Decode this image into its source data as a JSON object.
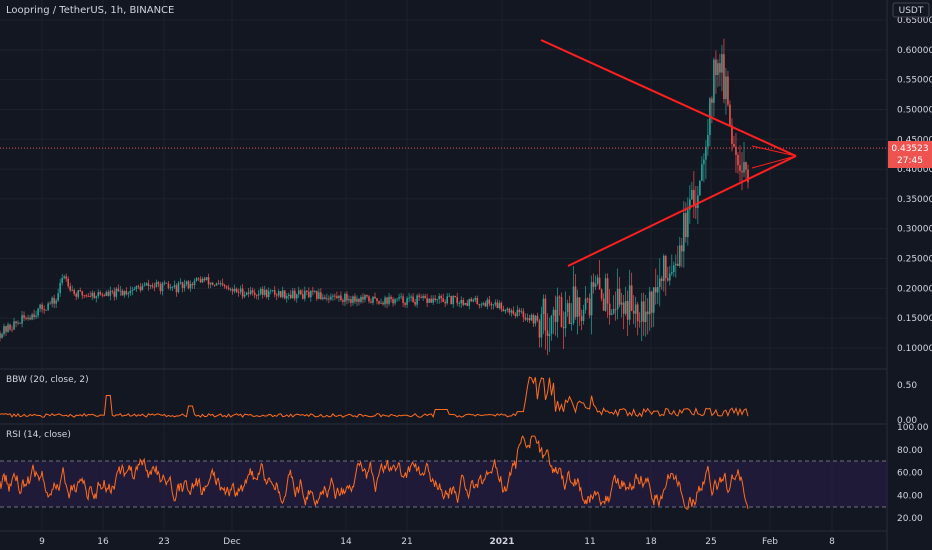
{
  "header": {
    "title": "Loopring / TetherUS, 1h, BINANCE",
    "currency": "USDT"
  },
  "price_tag": {
    "price": "0.43523",
    "countdown": "27:45"
  },
  "indicators": {
    "bbw": {
      "label": "BBW (20, close, 2)",
      "ticks": [
        "0.50",
        "0.00"
      ]
    },
    "rsi": {
      "label": "RSI (14, close)",
      "ticks": [
        "100.00",
        "80.00",
        "60.00",
        "40.00",
        "20.00"
      ]
    }
  },
  "colors": {
    "background": "#131722",
    "candle_up": "#26a69a",
    "candle_down": "#ef5350",
    "trendline": "#ff1f1f",
    "indicator_line": "#ff6d1f",
    "rsi_band": "#2a1e4a"
  },
  "chart_data": [
    {
      "type": "candlestick",
      "title": "Loopring / TetherUS, 1h, BINANCE",
      "x_ticks": [
        "9",
        "16",
        "23",
        "Dec",
        "14",
        "21",
        "2021",
        "11",
        "18",
        "25",
        "Feb",
        "8"
      ],
      "y_ticks": [
        "0.65000",
        "0.60000",
        "0.55000",
        "0.50000",
        "0.45000",
        "0.40000",
        "0.35000",
        "0.30000",
        "0.25000",
        "0.20000",
        "0.15000",
        "0.10000"
      ],
      "ylim": [
        0.07,
        0.665
      ],
      "last_price": 0.43523,
      "price_path": [
        [
          0,
          0.125
        ],
        [
          0.04,
          0.155
        ],
        [
          0.075,
          0.18
        ],
        [
          0.085,
          0.225
        ],
        [
          0.1,
          0.19
        ],
        [
          0.15,
          0.19
        ],
        [
          0.2,
          0.205
        ],
        [
          0.235,
          0.2
        ],
        [
          0.27,
          0.215
        ],
        [
          0.31,
          0.195
        ],
        [
          0.4,
          0.19
        ],
        [
          0.5,
          0.18
        ],
        [
          0.6,
          0.18
        ],
        [
          0.66,
          0.175
        ],
        [
          0.72,
          0.145
        ],
        [
          0.74,
          0.155
        ],
        [
          0.8,
          0.195
        ],
        [
          0.84,
          0.175
        ],
        [
          0.87,
          0.18
        ],
        [
          0.9,
          0.25
        ],
        [
          0.93,
          0.35
        ],
        [
          0.96,
          0.6
        ],
        [
          0.98,
          0.45
        ],
        [
          1.0,
          0.4
        ]
      ],
      "triangle_pattern": {
        "upper_line": {
          "from": [
            "Jan 5",
            0.62
          ],
          "to": [
            "Feb 5",
            0.42
          ]
        },
        "lower_line": {
          "from": [
            "Jan 7",
            0.235
          ],
          "to": [
            "Feb 5",
            0.42
          ]
        }
      }
    },
    {
      "type": "line",
      "title": "BBW (20, close, 2)",
      "ylim": [
        0,
        0.75
      ],
      "y_ticks": [
        0.5,
        0.0
      ],
      "note": "Bollinger Band Width, mostly 0.02-0.1 with a spike near 0.65 in early January"
    },
    {
      "type": "line",
      "title": "RSI (14, close)",
      "ylim": [
        10,
        100
      ],
      "y_ticks": [
        100,
        80,
        60,
        40,
        20
      ],
      "bands": [
        30,
        70
      ]
    }
  ]
}
